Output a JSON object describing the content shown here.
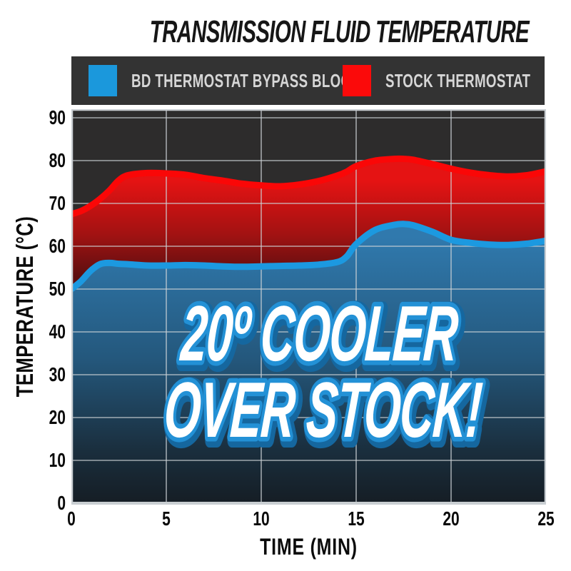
{
  "page": {
    "background": "#ffffff"
  },
  "header": {
    "title": "TRANSMISSION FLUID TEMPERATURE"
  },
  "legend": {
    "position": "top"
  },
  "axes": {
    "x_title": "TIME (MIN)",
    "y_title": "TEMPERATURE (°C)"
  },
  "annotation": {
    "line1": "20º COOLER",
    "line2": "OVER STOCK!"
  },
  "colors": {
    "page_bg": "#ffffff",
    "title_text": "#161616",
    "legend_bg": "#333333",
    "legend_text": "#d6d6d6",
    "plot_bg": "#2d2c2c",
    "grid": "#ccd2d6",
    "border": "#c9ced2",
    "tick_text": "#0a0a0a",
    "blue_line": "#1c99e0",
    "blue_fill_top": "#3079ad",
    "blue_fill_mid": "#24587d",
    "blue_fill_low": "#1a2e3d",
    "blue_fill_bottom": "#151d24",
    "red_line": "#fa0707",
    "red_fill_top": "#e51313",
    "red_fill_mid": "#a31212",
    "red_fill_bottom": "#5c0f10",
    "annotation_fill": "#ffffff",
    "annotation_stroke": "#2391d6",
    "annotation_outer": "#15679f"
  },
  "chart_data": {
    "type": "area",
    "title": "TRANSMISSION FLUID TEMPERATURE",
    "xlabel": "TIME (MIN)",
    "ylabel": "TEMPERATURE (°C)",
    "xlim": [
      0,
      25
    ],
    "ylim": [
      0,
      90
    ],
    "xticks": [
      0,
      5,
      10,
      15,
      20,
      25
    ],
    "yticks": [
      0,
      10,
      20,
      30,
      40,
      50,
      60,
      70,
      80,
      90
    ],
    "grid": true,
    "legend_position": "top",
    "x": [
      0,
      0.5,
      1,
      1.5,
      2,
      2.5,
      3,
      4,
      5,
      6,
      7,
      8,
      9,
      10,
      11,
      12,
      13,
      14,
      14.5,
      15,
      16,
      17,
      17.5,
      18,
      19,
      20,
      21,
      22,
      23,
      24,
      25
    ],
    "series": [
      {
        "name": "BD THERMOSTAT BYPASS BLOCK",
        "color": "#1b98dc",
        "values": [
          50,
          51.8,
          54.2,
          55.8,
          56.1,
          55.9,
          55.8,
          55.5,
          55.5,
          55.6,
          55.5,
          55.3,
          55.2,
          55.3,
          55.4,
          55.5,
          55.7,
          56.3,
          57.6,
          60.5,
          63.8,
          65,
          65.2,
          64.9,
          63.4,
          61.5,
          60.8,
          60.4,
          60.3,
          60.6,
          61.3
        ]
      },
      {
        "name": "STOCK THERMOSTAT",
        "color": "#fb0a0a",
        "values": [
          67.5,
          68.2,
          69.4,
          71,
          73,
          75.4,
          76.6,
          77.1,
          77,
          76.7,
          75.9,
          75.3,
          74.6,
          74.2,
          74,
          74.4,
          75.2,
          76.5,
          77.4,
          78.7,
          80,
          80.4,
          80.4,
          80.2,
          79.2,
          78.1,
          77.2,
          76.6,
          76.3,
          76.6,
          77.5
        ]
      }
    ],
    "annotation": [
      "20º COOLER",
      "OVER STOCK!"
    ]
  }
}
